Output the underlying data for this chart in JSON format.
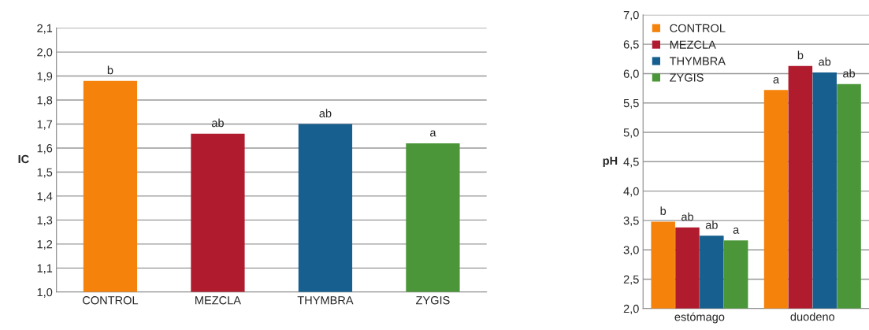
{
  "chart_data": [
    {
      "type": "bar",
      "ylabel": "IC",
      "categories": [
        "CONTROL",
        "MEZCLA",
        "THYMBRA",
        "ZYGIS"
      ],
      "values": [
        1.88,
        1.66,
        1.7,
        1.62
      ],
      "colors": [
        "#f5820a",
        "#b01c2e",
        "#165f8f",
        "#4a9638"
      ],
      "value_labels": [
        "b",
        "ab",
        "ab",
        "a"
      ],
      "ylim": [
        1.0,
        2.1
      ],
      "yticks": [
        {
          "value": 1.0,
          "label": "1,0"
        },
        {
          "value": 1.1,
          "label": "1,1"
        },
        {
          "value": 1.2,
          "label": "1,2"
        },
        {
          "value": 1.3,
          "label": "1,3"
        },
        {
          "value": 1.4,
          "label": "1,4"
        },
        {
          "value": 1.5,
          "label": "1,5"
        },
        {
          "value": 1.6,
          "label": "1,6"
        },
        {
          "value": 1.7,
          "label": "1,7"
        },
        {
          "value": 1.8,
          "label": "1,8"
        },
        {
          "value": 1.9,
          "label": "1,9"
        },
        {
          "value": 2.0,
          "label": "2,0"
        },
        {
          "value": 2.1,
          "label": "2,1"
        }
      ],
      "grid": "y"
    },
    {
      "type": "bar",
      "ylabel": "pH",
      "categories": [
        "estómago",
        "duodeno"
      ],
      "series": [
        {
          "name": "CONTROL",
          "color": "#f5820a",
          "values": [
            3.48,
            5.72
          ],
          "value_labels": [
            "b",
            "a"
          ]
        },
        {
          "name": "MEZCLA",
          "color": "#b01c2e",
          "values": [
            3.38,
            6.13
          ],
          "value_labels": [
            "ab",
            "b"
          ]
        },
        {
          "name": "THYMBRA",
          "color": "#165f8f",
          "values": [
            3.24,
            6.02
          ],
          "value_labels": [
            "ab",
            "ab"
          ]
        },
        {
          "name": "ZYGIS",
          "color": "#4a9638",
          "values": [
            3.16,
            5.82
          ],
          "value_labels": [
            "a",
            "ab"
          ]
        }
      ],
      "ylim": [
        2.0,
        7.0
      ],
      "yticks": [
        {
          "value": 2.0,
          "label": "2,0"
        },
        {
          "value": 2.5,
          "label": "2,5"
        },
        {
          "value": 3.0,
          "label": "3,0"
        },
        {
          "value": 3.5,
          "label": "3,5"
        },
        {
          "value": 4.0,
          "label": "4,0"
        },
        {
          "value": 4.5,
          "label": "4,5"
        },
        {
          "value": 5.0,
          "label": "5,0"
        },
        {
          "value": 5.5,
          "label": "5,5"
        },
        {
          "value": 6.0,
          "label": "6,0"
        },
        {
          "value": 6.5,
          "label": "6,5"
        },
        {
          "value": 7.0,
          "label": "7,0"
        }
      ],
      "grid": "y",
      "legend": "top left"
    }
  ]
}
